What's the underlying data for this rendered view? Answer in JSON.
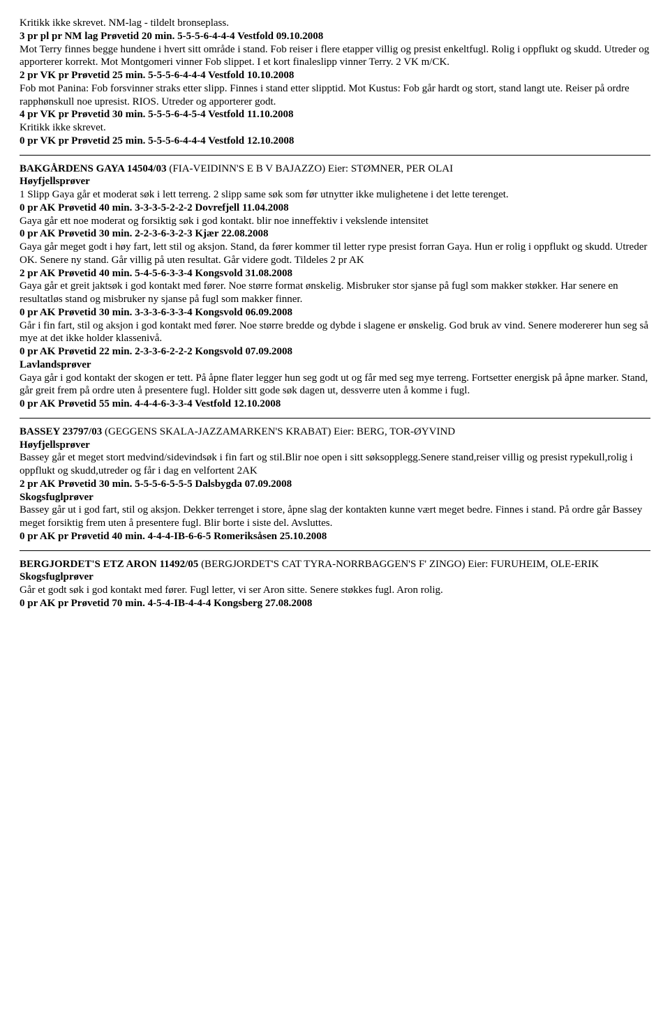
{
  "section1": {
    "line1": "Kritikk ikke skrevet. NM-lag - tildelt bronseplass.",
    "result1": "3 pr pl pr NM lag Prøvetid 20 min. 5-5-5-6-4-4-4 Vestfold 09.10.2008",
    "line2": "Mot Terry finnes begge hundene i hvert sitt område i stand. Fob reiser i flere etapper villig og presist enkeltfugl. Rolig i oppflukt og skudd. Utreder og apporterer korrekt. Mot Montgomeri vinner Fob slippet. I et kort finaleslipp vinner Terry. 2 VK m/CK.",
    "result2": "2 pr VK pr Prøvetid 25 min. 5-5-5-6-4-4-4 Vestfold 10.10.2008",
    "line3": "Fob mot Panina: Fob forsvinner straks etter slipp. Finnes i stand etter slipptid. Mot Kustus: Fob går hardt og stort, stand langt ute. Reiser på ordre rapphønskull noe upresist. RIOS. Utreder og apporterer godt.",
    "result3": "4 pr VK pr Prøvetid 30 min. 5-5-5-6-4-5-4 Vestfold 11.10.2008",
    "line4": "Kritikk ikke skrevet.",
    "result4": "0 pr VK pr Prøvetid 25 min. 5-5-5-6-4-4-4 Vestfold 12.10.2008"
  },
  "section2": {
    "title_bold": "BAKGÅRDENS GAYA 14504/03",
    "title_rest": " (FIA-VEIDINN'S E B V BAJAZZO) Eier: STØMNER, PER OLAI",
    "cat1": "Høyfjellsprøver",
    "line1": "1 Slipp Gaya går et moderat søk i lett terreng. 2 slipp same søk som før utnytter ikke mulighetene i det lette terenget.",
    "result1": "0 pr AK Prøvetid 40 min. 3-3-3-5-2-2-2 Dovrefjell 11.04.2008",
    "line2": "Gaya går ett noe moderat og forsiktig søk i god kontakt. blir noe inneffektiv i vekslende intensitet",
    "result2": "0 pr AK Prøvetid 30 min. 2-2-3-6-3-2-3 Kjær 22.08.2008",
    "line3": "Gaya går meget godt i høy fart, lett stil og aksjon. Stand, da fører kommer til letter rype presist forran Gaya. Hun er rolig i oppflukt og skudd. Utreder OK. Senere ny stand. Går villig på uten resultat. Går videre godt. Tildeles 2 pr AK",
    "result3": "2 pr AK Prøvetid 40 min. 5-4-5-6-3-3-4 Kongsvold 31.08.2008",
    "line4": "Gaya går et greit jaktsøk i god kontakt med fører. Noe større format ønskelig. Misbruker stor sjanse på fugl som makker støkker. Har senere en resultatløs stand og misbruker ny sjanse på fugl som makker finner.",
    "result4": "0 pr AK Prøvetid 30 min. 3-3-3-6-3-3-4 Kongsvold 06.09.2008",
    "line5": "Går i fin fart, stil og aksjon i god kontakt med fører. Noe større bredde og dybde i slagene er ønskelig. God bruk av vind. Senere modererer hun seg så mye at det ikke holder klassenivå.",
    "result5": "0 pr AK Prøvetid 22 min. 2-3-3-6-2-2-2 Kongsvold 07.09.2008",
    "cat2": "Lavlandsprøver",
    "line6": "Gaya går i god kontakt der skogen er tett. På åpne flater legger hun seg godt ut og får med seg mye terreng. Fortsetter energisk på åpne marker. Stand, går greit frem på ordre uten å presentere fugl. Holder sitt gode søk dagen ut, dessverre uten å komme i fugl.",
    "result6": "0 pr AK Prøvetid 55 min. 4-4-4-6-3-3-4 Vestfold 12.10.2008"
  },
  "section3": {
    "title_bold": "BASSEY 23797/03",
    "title_rest": " (GEGGENS SKALA-JAZZAMARKEN'S KRABAT) Eier: BERG, TOR-ØYVIND",
    "cat1": "Høyfjellsprøver",
    "line1": "Bassey går et meget stort medvind/sidevindsøk i fin fart og stil.Blir noe open i sitt søksopplegg.Senere stand,reiser villig og presist rypekull,rolig i oppflukt og skudd,utreder og får i dag en velfortent 2AK",
    "result1": "2 pr AK Prøvetid 30 min. 5-5-5-6-5-5-5 Dalsbygda 07.09.2008",
    "cat2": "Skogsfuglprøver",
    "line2": "Bassey går ut i god fart, stil og aksjon. Dekker terrenget i store, åpne slag der kontakten kunne vært meget bedre. Finnes i stand. På ordre går Bassey meget forsiktig frem uten å presentere fugl. Blir borte i siste del. Avsluttes.",
    "result2": "0 pr AK pr Prøvetid 40 min. 4-4-4-IB-6-6-5 Romeriksåsen 25.10.2008"
  },
  "section4": {
    "title_bold": "BERGJORDET'S ETZ ARON 11492/05",
    "title_rest": " (BERGJORDET'S CAT TYRA-NORRBAGGEN'S F' ZINGO) Eier: FURUHEIM, OLE-ERIK",
    "cat1": "Skogsfuglprøver",
    "line1": "Går et godt søk i god kontakt med fører. Fugl letter, vi ser Aron sitte. Senere støkkes fugl. Aron rolig.",
    "result1": "0 pr AK pr Prøvetid 70 min. 4-5-4-IB-4-4-4 Kongsberg 27.08.2008"
  }
}
